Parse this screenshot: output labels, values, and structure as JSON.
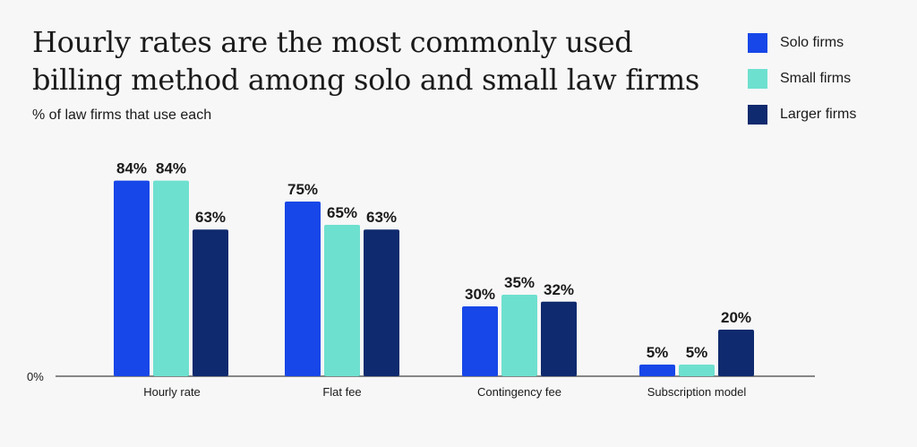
{
  "chart_data": {
    "type": "bar",
    "title_line1": "Hourly rates are the most commonly used",
    "title_line2": "billing method among solo and small law firms",
    "subtitle": "% of law firms that use each",
    "xlabel": "",
    "ylabel": "",
    "ylim": [
      0,
      100
    ],
    "zero_tick": "0%",
    "grid": false,
    "legend_position": "top-right",
    "categories": [
      "Hourly rate",
      "Flat fee",
      "Contingency fee",
      "Subscription model"
    ],
    "series": [
      {
        "name": "Solo firms",
        "color": "#1747e8",
        "values": [
          84,
          75,
          30,
          5
        ]
      },
      {
        "name": "Small firms",
        "color": "#6ee0cf",
        "values": [
          84,
          65,
          35,
          5
        ]
      },
      {
        "name": "Larger firms",
        "color": "#0f2a6e",
        "values": [
          63,
          63,
          32,
          20
        ]
      }
    ],
    "value_suffix": "%"
  }
}
